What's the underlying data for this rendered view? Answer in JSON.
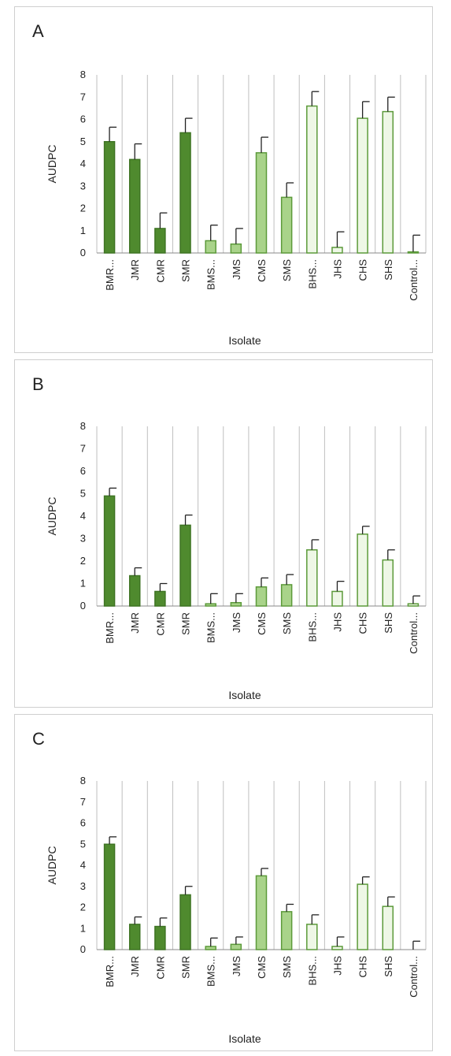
{
  "chart_data": [
    {
      "type": "bar",
      "panel_label": "A",
      "categories": [
        "BMR...",
        "JMR",
        "CMR",
        "SMR",
        "BMS...",
        "JMS",
        "CMS",
        "SMS",
        "BHS...",
        "JHS",
        "CHS",
        "SHS",
        "Control..."
      ],
      "values": [
        5.0,
        4.2,
        1.1,
        5.4,
        0.55,
        0.4,
        4.5,
        2.5,
        6.6,
        0.25,
        6.05,
        6.35,
        0.05
      ],
      "error": [
        0.65,
        0.7,
        0.7,
        0.65,
        0.7,
        0.7,
        0.7,
        0.65,
        0.65,
        0.7,
        0.75,
        0.65,
        0.75
      ],
      "xlabel": "Isolate",
      "ylabel": "AUDPC",
      "ylim": [
        0,
        8
      ],
      "yticks": [
        0,
        1,
        2,
        3,
        4,
        5,
        6,
        7,
        8
      ],
      "grid": "vertical",
      "bar_style": [
        "dark",
        "dark",
        "dark",
        "dark",
        "light",
        "light",
        "light",
        "light",
        "outline",
        "outline",
        "outline",
        "outline",
        "outline"
      ]
    },
    {
      "type": "bar",
      "panel_label": "B",
      "categories": [
        "BMR...",
        "JMR",
        "CMR",
        "SMR",
        "BMS...",
        "JMS",
        "CMS",
        "SMS",
        "BHS...",
        "JHS",
        "CHS",
        "SHS",
        "Control..."
      ],
      "values": [
        4.9,
        1.35,
        0.65,
        3.6,
        0.1,
        0.15,
        0.85,
        0.95,
        2.5,
        0.65,
        3.2,
        2.05,
        0.1
      ],
      "error": [
        0.35,
        0.35,
        0.35,
        0.45,
        0.45,
        0.4,
        0.4,
        0.45,
        0.45,
        0.45,
        0.35,
        0.45,
        0.35
      ],
      "xlabel": "Isolate",
      "ylabel": "AUDPC",
      "ylim": [
        0,
        8
      ],
      "yticks": [
        0,
        1,
        2,
        3,
        4,
        5,
        6,
        7,
        8
      ],
      "grid": "vertical",
      "bar_style": [
        "dark",
        "dark",
        "dark",
        "dark",
        "light",
        "light",
        "light",
        "light",
        "outline",
        "outline",
        "outline",
        "outline",
        "outline"
      ]
    },
    {
      "type": "bar",
      "panel_label": "C",
      "categories": [
        "BMR...",
        "JMR",
        "CMR",
        "SMR",
        "BMS...",
        "JMS",
        "CMS",
        "SMS",
        "BHS...",
        "JHS",
        "CHS",
        "SHS",
        "Control..."
      ],
      "values": [
        5.0,
        1.2,
        1.1,
        2.6,
        0.15,
        0.25,
        3.5,
        1.8,
        1.2,
        0.15,
        3.1,
        2.05,
        0.0
      ],
      "error": [
        0.35,
        0.35,
        0.4,
        0.4,
        0.4,
        0.35,
        0.35,
        0.35,
        0.45,
        0.45,
        0.35,
        0.45,
        0.4
      ],
      "xlabel": "Isolate",
      "ylabel": "AUDPC",
      "ylim": [
        0,
        8
      ],
      "yticks": [
        0,
        1,
        2,
        3,
        4,
        5,
        6,
        7,
        8
      ],
      "grid": "vertical",
      "bar_style": [
        "dark",
        "dark",
        "dark",
        "dark",
        "light",
        "light",
        "light",
        "light",
        "outline",
        "outline",
        "outline",
        "outline",
        "outline"
      ]
    }
  ],
  "colors": {
    "dark_fill": "#4f8a2e",
    "dark_stroke": "#3f7424",
    "light_fill": "#a9d38a",
    "light_stroke": "#5c9a3a",
    "outline_fill": "#eef7e6",
    "outline_stroke": "#5c9a3a",
    "error_bar": "#222222",
    "grid": "#bfbfbf",
    "axis": "#888888"
  }
}
